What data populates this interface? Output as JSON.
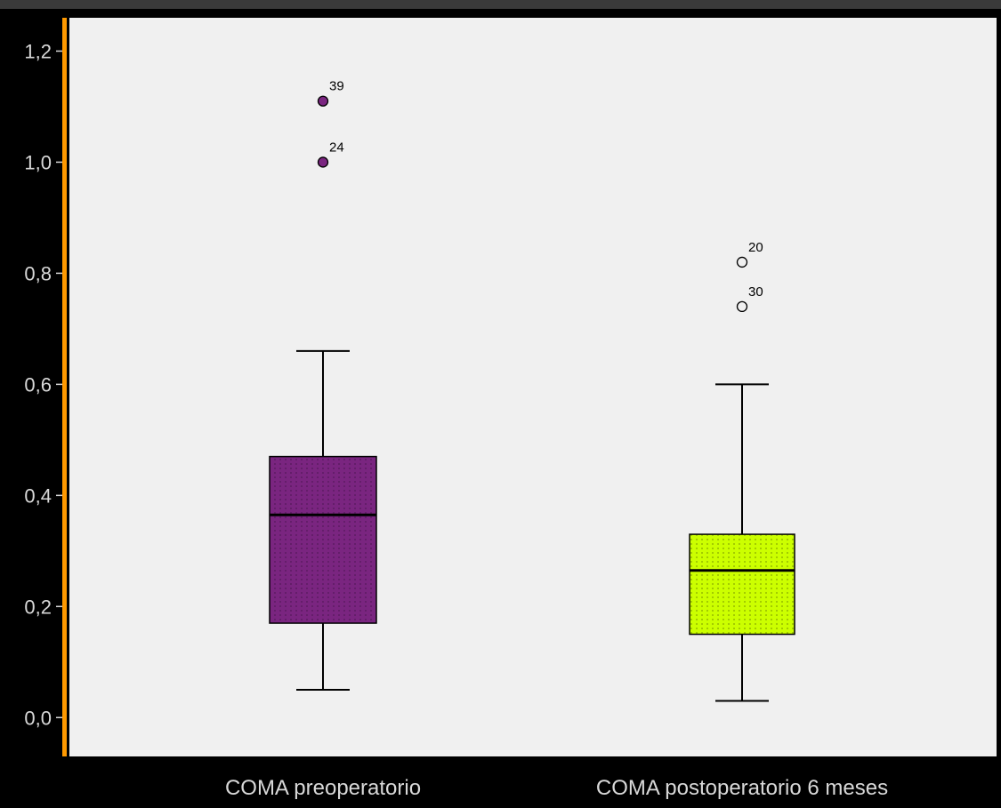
{
  "chart_data": {
    "type": "boxplot",
    "title": "",
    "xlabel": "",
    "ylabel": "",
    "ylim": [
      -0.07,
      1.26
    ],
    "y_ticks": [
      {
        "value": 0.0,
        "label": "0,0"
      },
      {
        "value": 0.2,
        "label": "0,2"
      },
      {
        "value": 0.4,
        "label": "0,4"
      },
      {
        "value": 0.6,
        "label": "0,6"
      },
      {
        "value": 0.8,
        "label": "0,8"
      },
      {
        "value": 1.0,
        "label": "1,0"
      },
      {
        "value": 1.2,
        "label": "1,2"
      }
    ],
    "grid": false,
    "categories": [
      "COMA preoperatorio",
      "COMA postoperatorio 6 meses"
    ],
    "boxes": [
      {
        "category": "COMA preoperatorio",
        "whisker_low": 0.05,
        "q1": 0.17,
        "median": 0.365,
        "q3": 0.47,
        "whisker_high": 0.66,
        "color": "#7a2580",
        "outliers": [
          {
            "value": 1.11,
            "label": "39",
            "style": "filled"
          },
          {
            "value": 1.0,
            "label": "24",
            "style": "filled"
          }
        ]
      },
      {
        "category": "COMA postoperatorio 6 meses",
        "whisker_low": 0.03,
        "q1": 0.15,
        "median": 0.265,
        "q3": 0.33,
        "whisker_high": 0.6,
        "color": "#ccff00",
        "outliers": [
          {
            "value": 0.82,
            "label": "20",
            "style": "hollow"
          },
          {
            "value": 0.74,
            "label": "30",
            "style": "hollow"
          }
        ]
      }
    ]
  },
  "colors": {
    "background": "#000000",
    "plot_area": "#f0f0f0",
    "y_axis_accent": "#ff9900",
    "text": "#d8d8d8"
  }
}
